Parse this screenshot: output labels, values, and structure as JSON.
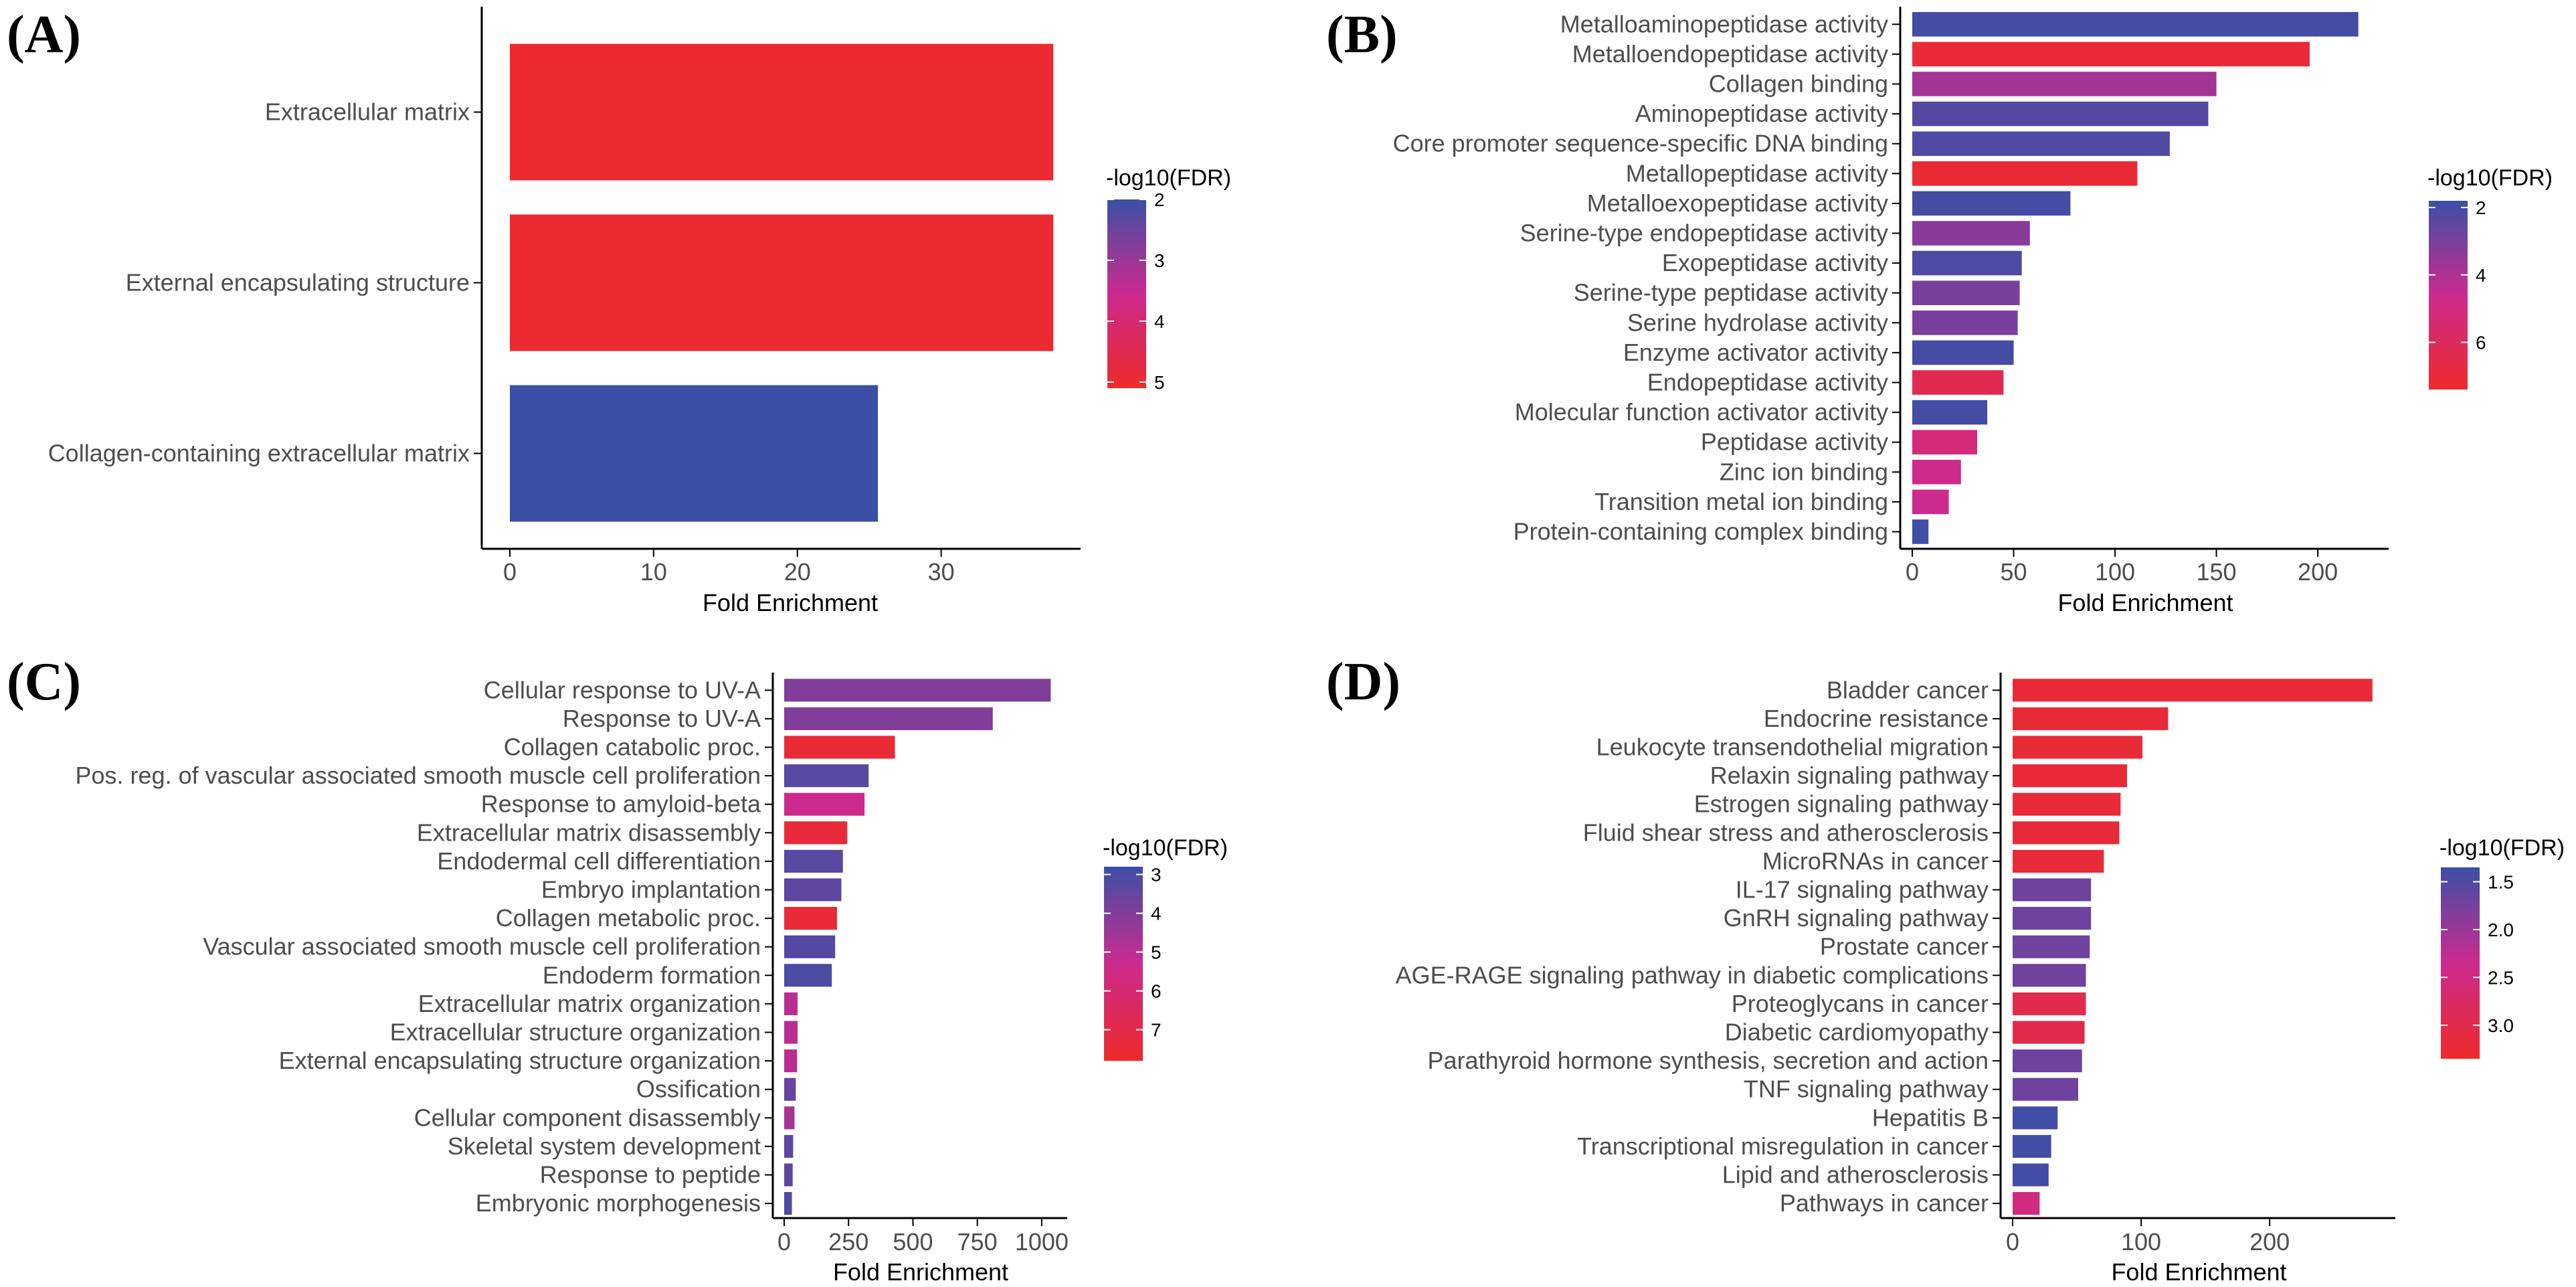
{
  "chart_data": [
    {
      "type": "bar",
      "orientation": "horizontal",
      "panel_label": "(A)",
      "categories": [
        "Extracellular matrix",
        "External encapsulating structure",
        "Collagen-containing extracellular matrix"
      ],
      "values": [
        37.8,
        37.8,
        25.6
      ],
      "color_values": [
        5.0,
        5.0,
        2.0
      ],
      "xlabel": "Fold Enrichment",
      "xlim": [
        0,
        39
      ],
      "xticks": [
        0,
        10,
        20,
        30
      ],
      "legend": {
        "title": "-log10(FDR)",
        "ticks": [
          2,
          3,
          4,
          5
        ],
        "range": [
          2.0,
          5.1
        ],
        "position": "right"
      }
    },
    {
      "type": "bar",
      "orientation": "horizontal",
      "panel_label": "(B)",
      "categories": [
        "Metalloaminopeptidase activity",
        "Metalloendopeptidase activity",
        "Collagen binding",
        "Aminopeptidase activity",
        "Core promoter sequence-specific DNA binding",
        "Metallopeptidase activity",
        "Metalloexopeptidase activity",
        "Serine-type endopeptidase activity",
        "Exopeptidase activity",
        "Serine-type peptidase activity",
        "Serine hydrolase activity",
        "Enzyme activator activity",
        "Endopeptidase activity",
        "Molecular function activator activity",
        "Peptidase activity",
        "Zinc ion binding",
        "Transition metal ion binding",
        "Protein-containing complex binding"
      ],
      "values": [
        220,
        196,
        150,
        146,
        127,
        111,
        78,
        58,
        54,
        53,
        52,
        50,
        45,
        37,
        32,
        24,
        18,
        8
      ],
      "color_values": [
        2.0,
        7.0,
        3.8,
        2.3,
        2.2,
        7.1,
        2.0,
        3.3,
        2.1,
        3.0,
        3.0,
        2.0,
        6.3,
        2.0,
        5.2,
        4.7,
        4.6,
        1.9
      ],
      "xlabel": "Fold Enrichment",
      "xlim": [
        0,
        230
      ],
      "xticks": [
        0,
        50,
        100,
        150,
        200
      ],
      "legend": {
        "title": "-log10(FDR)",
        "ticks": [
          2,
          4,
          6
        ],
        "range": [
          1.8,
          7.4
        ],
        "position": "right"
      }
    },
    {
      "type": "bar",
      "orientation": "horizontal",
      "panel_label": "(C)",
      "categories": [
        "Cellular response to UV-A",
        "Response to UV-A",
        "Collagen catabolic proc.",
        "Pos. reg. of vascular associated smooth muscle cell proliferation",
        "Response to amyloid-beta",
        "Extracellular matrix disassembly",
        "Endodermal cell differentiation",
        "Embryo implantation",
        "Collagen metabolic proc.",
        "Vascular associated smooth muscle cell proliferation",
        "Endoderm formation",
        "Extracellular matrix organization",
        "Extracellular structure organization",
        "External encapsulating structure organization",
        "Ossification",
        "Cellular component disassembly",
        "Skeletal system development",
        "Response to peptide",
        "Embryonic morphogenesis"
      ],
      "values": [
        1035,
        810,
        430,
        328,
        312,
        245,
        228,
        222,
        205,
        198,
        185,
        52,
        52,
        50,
        45,
        40,
        35,
        33,
        30
      ],
      "color_values": [
        4.0,
        4.0,
        7.5,
        3.3,
        5.3,
        7.4,
        3.3,
        3.4,
        7.5,
        3.2,
        3.1,
        5.0,
        5.0,
        5.0,
        3.6,
        4.7,
        3.4,
        3.4,
        3.2
      ],
      "xlabel": "Fold Enrichment",
      "xlim": [
        0,
        1060
      ],
      "xticks": [
        0,
        250,
        500,
        750,
        1000
      ],
      "legend": {
        "title": "-log10(FDR)",
        "ticks": [
          3,
          4,
          5,
          6,
          7
        ],
        "range": [
          2.8,
          7.8
        ],
        "position": "right"
      }
    },
    {
      "type": "bar",
      "orientation": "horizontal",
      "panel_label": "(D)",
      "categories": [
        "Bladder cancer",
        "Endocrine resistance",
        "Leukocyte transendothelial migration",
        "Relaxin signaling pathway",
        "Estrogen signaling pathway",
        "Fluid shear stress and atherosclerosis",
        "MicroRNAs in cancer",
        "IL-17 signaling pathway",
        "GnRH signaling pathway",
        "Prostate cancer",
        "AGE-RAGE signaling pathway in diabetic complications",
        "Proteoglycans in cancer",
        "Diabetic cardiomyopathy",
        "Parathyroid hormone synthesis, secretion and action",
        "TNF signaling pathway",
        "Hepatitis B",
        "Transcriptional misregulation in cancer",
        "Lipid and atherosclerosis",
        "Pathways in cancer"
      ],
      "values": [
        280,
        121,
        101,
        89,
        84,
        83,
        71,
        61,
        61,
        60,
        57,
        57,
        56,
        54,
        51,
        35,
        30,
        28,
        21
      ],
      "color_values": [
        3.2,
        3.2,
        3.2,
        3.2,
        3.2,
        3.2,
        3.2,
        1.7,
        1.7,
        1.7,
        1.7,
        3.0,
        3.0,
        1.7,
        1.7,
        1.4,
        1.4,
        1.4,
        2.5
      ],
      "xlabel": "Fold Enrichment",
      "xlim": [
        0,
        290
      ],
      "xticks": [
        0,
        100,
        200
      ],
      "legend": {
        "title": "-log10(FDR)",
        "ticks": [
          "1.5",
          "2.0",
          "2.5",
          "3.0"
        ],
        "tick_values": [
          1.5,
          2.0,
          2.5,
          3.0
        ],
        "range": [
          1.35,
          3.35
        ],
        "position": "right"
      }
    }
  ],
  "colors": {
    "low": "#3b4fa6",
    "mid": "#cc2a8e",
    "high": "#ee2a2a",
    "axis": "#000000",
    "text": "#4d4d4d"
  }
}
